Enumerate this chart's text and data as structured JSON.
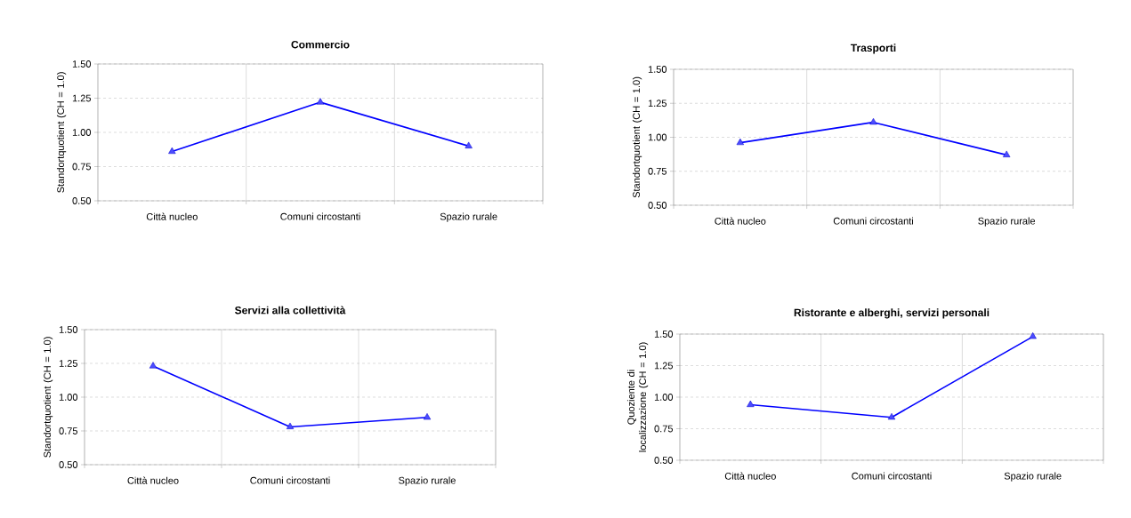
{
  "chart_data": [
    {
      "type": "line",
      "title": "Commercio",
      "ylabel": "Standortquotient (CH = 1.0)",
      "categories": [
        "Città nucleo",
        "Comuni circostanti",
        "Spazio rurale"
      ],
      "series": [
        {
          "color": "#0000ff",
          "values": [
            0.86,
            1.22,
            0.9
          ]
        }
      ],
      "ylim": [
        0.5,
        1.5
      ],
      "yticks": [
        {
          "value": 0.5,
          "label": "0.50"
        },
        {
          "value": 0.75,
          "label": "0.75"
        },
        {
          "value": 1.0,
          "label": "1.00"
        },
        {
          "value": 1.25,
          "label": "1.25"
        },
        {
          "value": 1.5,
          "label": "1.50"
        }
      ],
      "grid": true,
      "marker": "triangle",
      "line_style": "solid"
    },
    {
      "type": "line",
      "title": "Trasporti",
      "ylabel": "Standortquotient (CH = 1.0)",
      "categories": [
        "Città nucleo",
        "Comuni circostanti",
        "Spazio rurale"
      ],
      "series": [
        {
          "color": "#0000ff",
          "values": [
            0.96,
            1.11,
            0.87
          ]
        }
      ],
      "ylim": [
        0.5,
        1.5
      ],
      "yticks": [
        {
          "value": 0.5,
          "label": "0.50"
        },
        {
          "value": 0.75,
          "label": "0.75"
        },
        {
          "value": 1.0,
          "label": "1.00"
        },
        {
          "value": 1.25,
          "label": "1.25"
        },
        {
          "value": 1.5,
          "label": "1.50"
        }
      ],
      "grid": true,
      "marker": "triangle",
      "line_style": "solid"
    },
    {
      "type": "line",
      "title": "Servizi alla collettività",
      "ylabel": "Standortquotient (CH = 1.0)",
      "categories": [
        "Città nucleo",
        "Comuni circostanti",
        "Spazio rurale"
      ],
      "series": [
        {
          "color": "#0000ff",
          "values": [
            1.23,
            0.78,
            0.85
          ]
        }
      ],
      "ylim": [
        0.5,
        1.5
      ],
      "yticks": [
        {
          "value": 0.5,
          "label": "0.50"
        },
        {
          "value": 0.75,
          "label": "0.75"
        },
        {
          "value": 1.0,
          "label": "1.00"
        },
        {
          "value": 1.25,
          "label": "1.25"
        },
        {
          "value": 1.5,
          "label": "1.50"
        }
      ],
      "grid": true,
      "marker": "triangle",
      "line_style": "solid"
    },
    {
      "type": "line",
      "title": "Ristorante e alberghi, servizi personali",
      "ylabel": "Quoziente di localizzazione (CH = 1.0)",
      "categories": [
        "Città nucleo",
        "Comuni circostanti",
        "Spazio rurale"
      ],
      "series": [
        {
          "color": "#0000ff",
          "values": [
            0.94,
            0.84,
            1.48
          ]
        }
      ],
      "ylim": [
        0.5,
        1.5
      ],
      "yticks": [
        {
          "value": 0.5,
          "label": "0.50"
        },
        {
          "value": 0.75,
          "label": "0.75"
        },
        {
          "value": 1.0,
          "label": "1.00"
        },
        {
          "value": 1.25,
          "label": "1.25"
        },
        {
          "value": 1.5,
          "label": "1.50"
        }
      ],
      "grid": true,
      "marker": "triangle",
      "line_style": "solid"
    }
  ]
}
